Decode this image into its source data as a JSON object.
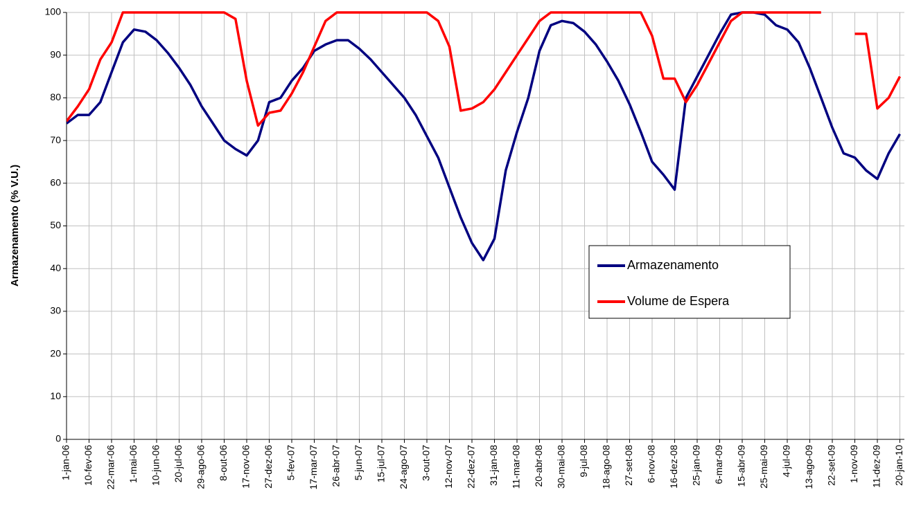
{
  "chart_data": {
    "type": "line",
    "y_label": "Armazenamento (% V.U.)",
    "x": [
      "2006-01-01",
      "2006-01-21",
      "2006-02-10",
      "2006-03-02",
      "2006-03-22",
      "2006-04-11",
      "2006-05-01",
      "2006-05-21",
      "2006-06-10",
      "2006-06-30",
      "2006-07-20",
      "2006-08-09",
      "2006-08-29",
      "2006-09-18",
      "2006-10-08",
      "2006-10-28",
      "2006-11-17",
      "2006-12-07",
      "2006-12-27",
      "2007-01-16",
      "2007-02-05",
      "2007-02-25",
      "2007-03-17",
      "2007-04-06",
      "2007-04-26",
      "2007-05-16",
      "2007-06-05",
      "2007-06-25",
      "2007-07-15",
      "2007-08-04",
      "2007-08-24",
      "2007-09-13",
      "2007-10-03",
      "2007-10-23",
      "2007-11-12",
      "2007-12-02",
      "2007-12-22",
      "2008-01-11",
      "2008-01-31",
      "2008-02-20",
      "2008-03-11",
      "2008-03-31",
      "2008-04-20",
      "2008-05-10",
      "2008-05-30",
      "2008-06-19",
      "2008-07-09",
      "2008-07-29",
      "2008-08-18",
      "2008-09-07",
      "2008-09-27",
      "2008-10-17",
      "2008-11-06",
      "2008-11-26",
      "2008-12-16",
      "2009-01-05",
      "2009-01-25",
      "2009-02-14",
      "2009-03-06",
      "2009-03-26",
      "2009-04-15",
      "2009-05-05",
      "2009-05-25",
      "2009-06-14",
      "2009-07-04",
      "2009-07-24",
      "2009-08-13",
      "2009-09-02",
      "2009-09-22",
      "2009-10-12",
      "2009-11-01",
      "2009-11-21",
      "2009-12-11",
      "2009-12-31",
      "2010-01-20"
    ],
    "series": [
      {
        "name": "Armazenamento",
        "color": "#000080",
        "values": [
          74,
          76,
          76,
          79,
          86,
          93,
          96,
          95.5,
          93.5,
          90.5,
          87,
          83,
          78,
          74,
          70,
          68,
          66.5,
          70,
          79,
          80,
          84,
          87,
          91,
          92.5,
          93.5,
          93.5,
          91.5,
          89,
          86,
          83,
          80,
          76,
          71,
          66,
          59,
          52,
          46,
          42,
          47,
          63,
          72,
          80,
          91,
          97,
          98,
          97.5,
          95.5,
          92.5,
          88.5,
          84,
          78.5,
          72,
          65,
          62,
          58.5,
          80,
          85,
          90,
          95,
          99.5,
          100,
          100,
          99.5,
          97,
          96,
          93,
          87,
          80,
          73,
          67,
          66,
          63,
          61,
          67,
          71.5
        ]
      },
      {
        "name": "Volume de Espera",
        "color": "#ff0000",
        "values": [
          74.5,
          78,
          82,
          89,
          93,
          100,
          100,
          100,
          100,
          100,
          100,
          100,
          100,
          100,
          100,
          98.5,
          84,
          73.5,
          76.5,
          77,
          81,
          86,
          92,
          98,
          100,
          100,
          100,
          100,
          100,
          100,
          100,
          100,
          100,
          98,
          92,
          77,
          77.5,
          79,
          82,
          86,
          90,
          94,
          98,
          100,
          100,
          100,
          100,
          100,
          100,
          100,
          100,
          100,
          94.5,
          84.5,
          84.5,
          79,
          83,
          88,
          93,
          98,
          100,
          100,
          100,
          100,
          100,
          100,
          100,
          100,
          null,
          null,
          95,
          95,
          77.5,
          80,
          85
        ]
      }
    ],
    "xlim": [
      "2006-01-01",
      "2010-01-28"
    ],
    "xticks": [
      {
        "value": "2006-01-01",
        "label": "1-jan-06"
      },
      {
        "value": "2006-02-10",
        "label": "10-fev-06"
      },
      {
        "value": "2006-03-22",
        "label": "22-mar-06"
      },
      {
        "value": "2006-05-01",
        "label": "1-mai-06"
      },
      {
        "value": "2006-06-10",
        "label": "10-jun-06"
      },
      {
        "value": "2006-07-20",
        "label": "20-jul-06"
      },
      {
        "value": "2006-08-29",
        "label": "29-ago-06"
      },
      {
        "value": "2006-10-08",
        "label": "8-out-06"
      },
      {
        "value": "2006-11-17",
        "label": "17-nov-06"
      },
      {
        "value": "2006-12-27",
        "label": "27-dez-06"
      },
      {
        "value": "2007-02-05",
        "label": "5-fev-07"
      },
      {
        "value": "2007-03-17",
        "label": "17-mar-07"
      },
      {
        "value": "2007-04-26",
        "label": "26-abr-07"
      },
      {
        "value": "2007-06-05",
        "label": "5-jun-07"
      },
      {
        "value": "2007-07-15",
        "label": "15-jul-07"
      },
      {
        "value": "2007-08-24",
        "label": "24-ago-07"
      },
      {
        "value": "2007-10-03",
        "label": "3-out-07"
      },
      {
        "value": "2007-11-12",
        "label": "12-nov-07"
      },
      {
        "value": "2007-12-22",
        "label": "22-dez-07"
      },
      {
        "value": "2008-01-31",
        "label": "31-jan-08"
      },
      {
        "value": "2008-03-11",
        "label": "11-mar-08"
      },
      {
        "value": "2008-04-20",
        "label": "20-abr-08"
      },
      {
        "value": "2008-05-30",
        "label": "30-mai-08"
      },
      {
        "value": "2008-07-09",
        "label": "9-jul-08"
      },
      {
        "value": "2008-08-18",
        "label": "18-ago-08"
      },
      {
        "value": "2008-09-27",
        "label": "27-set-08"
      },
      {
        "value": "2008-11-06",
        "label": "6-nov-08"
      },
      {
        "value": "2008-12-16",
        "label": "16-dez-08"
      },
      {
        "value": "2009-01-25",
        "label": "25-jan-09"
      },
      {
        "value": "2009-03-06",
        "label": "6-mar-09"
      },
      {
        "value": "2009-04-15",
        "label": "15-abr-09"
      },
      {
        "value": "2009-05-25",
        "label": "25-mai-09"
      },
      {
        "value": "2009-07-04",
        "label": "4-jul-09"
      },
      {
        "value": "2009-08-13",
        "label": "13-ago-09"
      },
      {
        "value": "2009-09-22",
        "label": "22-set-09"
      },
      {
        "value": "2009-11-01",
        "label": "1-nov-09"
      },
      {
        "value": "2009-12-11",
        "label": "11-dez-09"
      },
      {
        "value": "2010-01-20",
        "label": "20-jan-10"
      }
    ],
    "ylim": [
      0,
      100
    ],
    "yticks": [
      0,
      10,
      20,
      30,
      40,
      50,
      60,
      70,
      80,
      90,
      100
    ],
    "grid": true,
    "legend": "right"
  }
}
